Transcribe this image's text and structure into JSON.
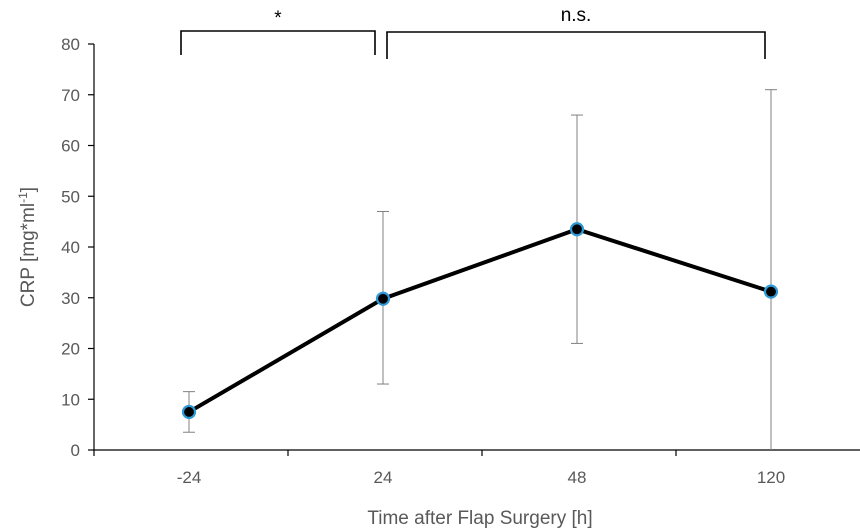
{
  "chart_data": {
    "type": "line",
    "title": "",
    "xlabel": "Time after Flap Surgery [h]",
    "ylabel": "CRP [mg*ml",
    "ylabel_superscript": "-1",
    "ylabel_close": "]",
    "categories": [
      "-24",
      "24",
      "48",
      "120"
    ],
    "series": [
      {
        "values": [
          7.5,
          29.8,
          43.5,
          31.2
        ],
        "error_low": [
          3.5,
          13,
          21,
          0
        ],
        "error_high": [
          11.5,
          47,
          66,
          71
        ],
        "line_color": "#000000",
        "marker_fill": "#000000",
        "marker_edge": "#2e9bd6"
      }
    ],
    "ylim": [
      0,
      80
    ],
    "yticks": [
      0,
      10,
      20,
      30,
      40,
      50,
      60,
      70,
      80
    ],
    "grid": false,
    "legend": "none",
    "annotations": [
      {
        "label": "*",
        "from_category": 0,
        "to_category": 1
      },
      {
        "label": "n.s.",
        "from_category": 1,
        "to_category": 3
      }
    ]
  }
}
